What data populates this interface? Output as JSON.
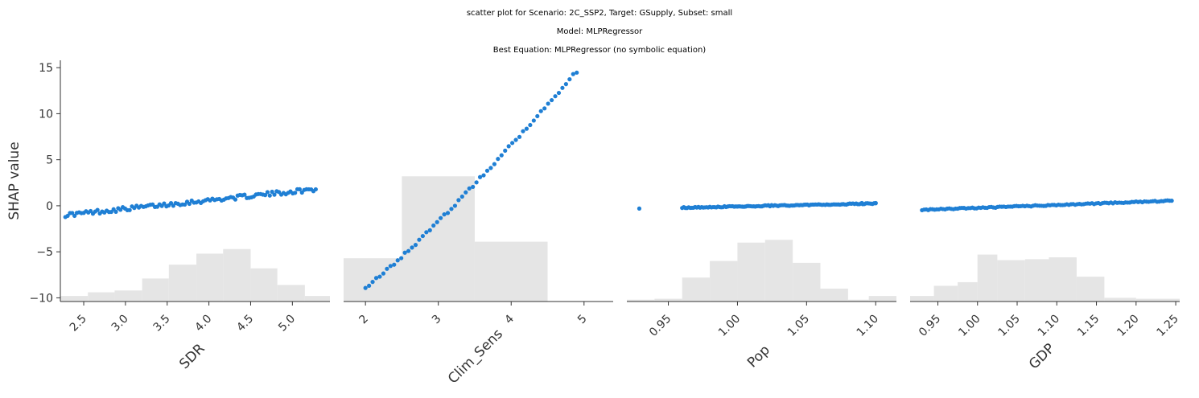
{
  "titles": {
    "line1": "scatter plot for Scenario: 2C_SSP2, Target: GSupply, Subset: small",
    "line2": "Model: MLPRegressor",
    "line3": "Best Equation: MLPRegressor (no symbolic equation)"
  },
  "colors": {
    "points": "#1f7fd4",
    "hist": "#e5e5e5",
    "axis": "#333333"
  },
  "chart_data": [
    {
      "type": "scatter",
      "xlabel": "SDR",
      "ylabel": "SHAP value",
      "xlim": [
        2.22,
        5.45
      ],
      "ylim": [
        -10.4,
        15.8
      ],
      "yticks": [
        15,
        10,
        5,
        0,
        -5,
        -10
      ],
      "ytick_labels": [
        "15",
        "10",
        "5",
        "0",
        "−5",
        "−10"
      ],
      "xticks": [
        2.5,
        3.0,
        3.5,
        4.0,
        4.5,
        5.0
      ],
      "xtick_labels": [
        "2.5",
        "3.0",
        "3.5",
        "4.0",
        "4.5",
        "5.0"
      ],
      "show_y_axis": true,
      "points": {
        "x_start": 2.28,
        "x_end": 5.28,
        "n": 110,
        "y_start": -1.0,
        "y_end": 1.8,
        "spread": 0.45
      },
      "histogram": {
        "edges": [
          2.22,
          2.55,
          2.87,
          3.2,
          3.52,
          3.85,
          4.17,
          4.5,
          4.82,
          5.15,
          5.45
        ],
        "heights": [
          -9.8,
          -9.4,
          -9.2,
          -7.9,
          -6.4,
          -5.2,
          -4.7,
          -6.8,
          -8.6,
          -9.8
        ]
      }
    },
    {
      "type": "scatter",
      "xlabel": "Clim_Sens",
      "xlim": [
        1.7,
        5.4
      ],
      "ylim": [
        -10.4,
        15.8
      ],
      "xticks": [
        2,
        3,
        4,
        5
      ],
      "xtick_labels": [
        "2",
        "3",
        "4",
        "5"
      ],
      "show_y_axis": false,
      "points": {
        "x_start": 2.0,
        "x_end": 4.9,
        "n": 60,
        "y_start": -8.8,
        "y_end": 14.6,
        "spread": 0.3,
        "curve": 1.12
      },
      "histogram": {
        "edges": [
          1.7,
          2.5,
          3.5,
          4.5,
          5.4
        ],
        "heights": [
          -5.7,
          3.2,
          -3.9,
          -10.4
        ]
      }
    },
    {
      "type": "scatter",
      "xlabel": "Pop",
      "xlim": [
        0.92,
        1.115
      ],
      "ylim": [
        -10.4,
        15.8
      ],
      "xticks": [
        0.95,
        1.0,
        1.05,
        1.1
      ],
      "xtick_labels": [
        "0.95",
        "1.00",
        "1.05",
        "1.10"
      ],
      "show_y_axis": false,
      "points": {
        "x_start": 0.96,
        "x_end": 1.1,
        "n": 120,
        "y_start": -0.2,
        "y_end": 0.25,
        "spread": 0.12,
        "outliers": [
          [
            0.929,
            -0.3
          ],
          [
            1.09,
            0.3
          ],
          [
            1.1,
            0.3
          ]
        ]
      },
      "histogram": {
        "edges": [
          0.92,
          0.94,
          0.96,
          0.98,
          1.0,
          1.02,
          1.04,
          1.06,
          1.08,
          1.095,
          1.115
        ],
        "heights": [
          -10.2,
          -10.1,
          -7.8,
          -6.0,
          -4.0,
          -3.7,
          -6.2,
          -9.0,
          -10.2,
          -9.8
        ]
      }
    },
    {
      "type": "scatter",
      "xlabel": "GDP",
      "xlim": [
        0.915,
        1.255
      ],
      "ylim": [
        -10.4,
        15.8
      ],
      "xticks": [
        0.95,
        1.0,
        1.05,
        1.1,
        1.15,
        1.2,
        1.25
      ],
      "xtick_labels": [
        "0.95",
        "1.00",
        "1.05",
        "1.10",
        "1.15",
        "1.20",
        "1.25"
      ],
      "show_y_axis": false,
      "points": {
        "x_start": 0.93,
        "x_end": 1.245,
        "n": 120,
        "y_start": -0.45,
        "y_end": 0.55,
        "spread": 0.12
      },
      "histogram": {
        "edges": [
          0.915,
          0.945,
          0.975,
          1.0,
          1.025,
          1.06,
          1.09,
          1.125,
          1.16,
          1.2,
          1.255
        ],
        "heights": [
          -9.8,
          -8.7,
          -8.3,
          -5.3,
          -5.9,
          -5.8,
          -5.6,
          -7.7,
          -10.0,
          -10.1
        ]
      }
    }
  ]
}
